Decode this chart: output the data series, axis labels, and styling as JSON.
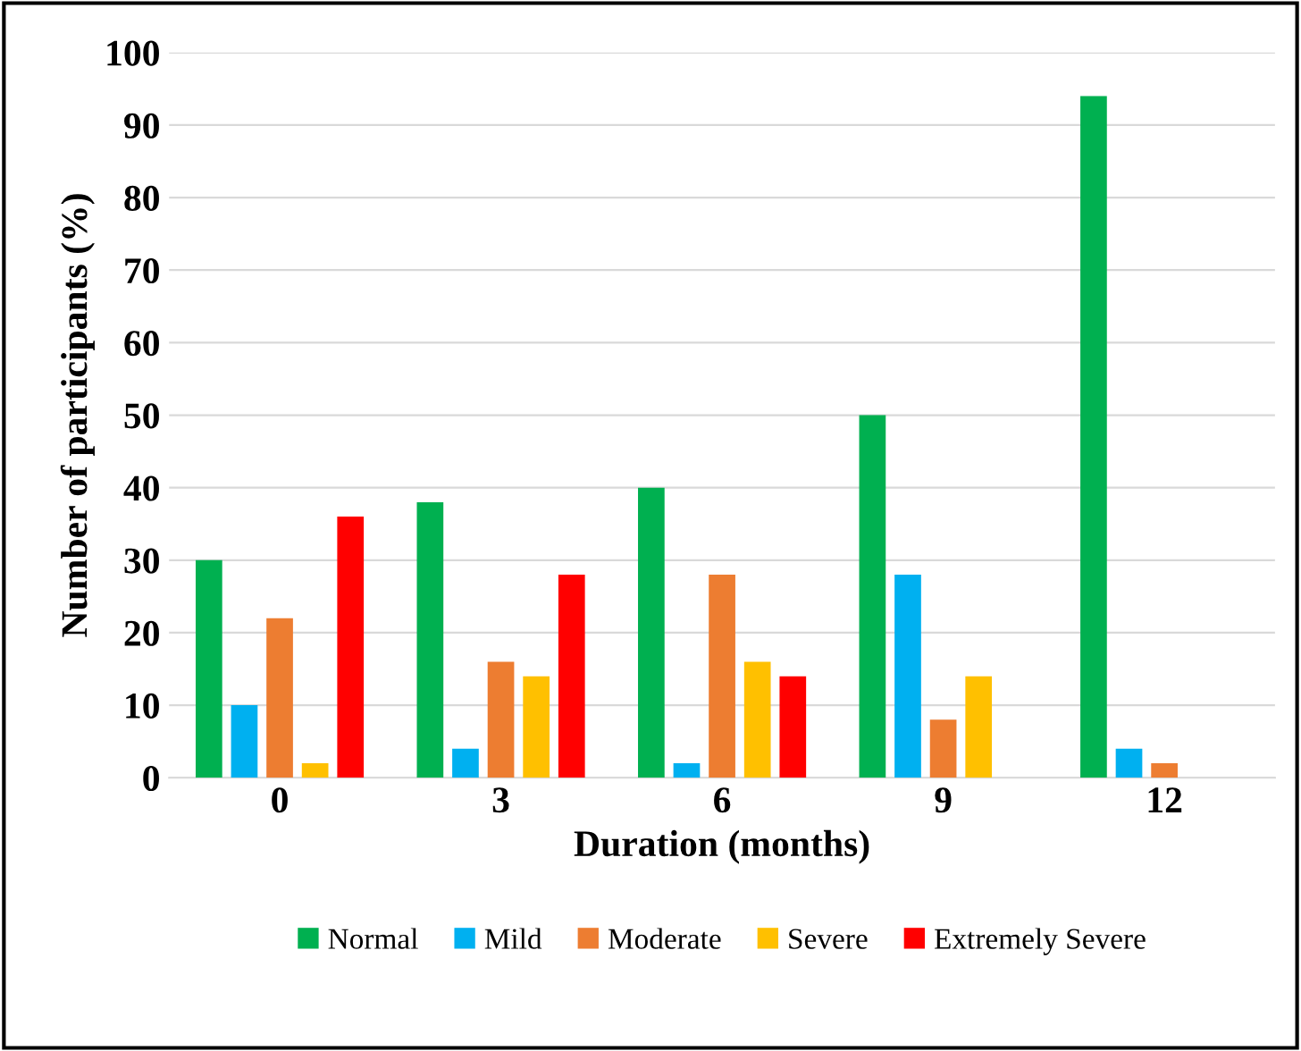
{
  "chart_data": {
    "type": "bar",
    "xlabel": "Duration (months)",
    "ylabel": "Number of participants (%)",
    "categories": [
      "0",
      "3",
      "6",
      "9",
      "12"
    ],
    "series": [
      {
        "name": "Normal",
        "color": "#00b050",
        "values": [
          30,
          38,
          40,
          50,
          94
        ]
      },
      {
        "name": "Mild",
        "color": "#00b0f0",
        "values": [
          10,
          4,
          2,
          28,
          4
        ]
      },
      {
        "name": "Moderate",
        "color": "#ed7d31",
        "values": [
          22,
          16,
          28,
          8,
          2
        ]
      },
      {
        "name": "Severe",
        "color": "#ffc000",
        "values": [
          2,
          14,
          16,
          14,
          0
        ]
      },
      {
        "name": "Extremely Severe",
        "color": "#ff0000",
        "values": [
          36,
          28,
          14,
          0,
          0
        ]
      }
    ],
    "ylim": [
      0,
      100
    ],
    "yticks": [
      0,
      10,
      20,
      30,
      40,
      50,
      60,
      70,
      80,
      90,
      100
    ],
    "grid": "y",
    "legend": "bottom"
  }
}
